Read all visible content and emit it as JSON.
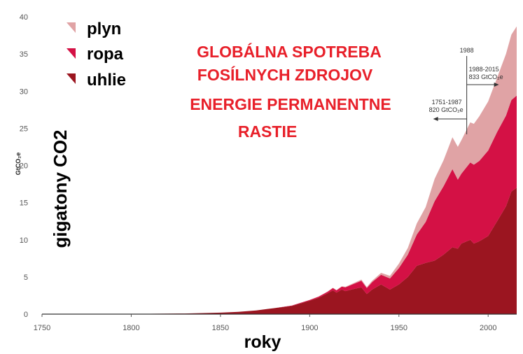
{
  "chart_data": {
    "type": "area",
    "stacked": true,
    "title_lines": [
      "GLOBÁLNA SPOTREBA",
      "FOSÍLNYCH ZDROJOV",
      "ENERGIE PERMANENTNE",
      "RASTIE"
    ],
    "xlabel": "roky",
    "ylabel": "gigatony CO2",
    "ylabel_unit": "GtCO₂e",
    "xlim": [
      1750,
      2016
    ],
    "ylim": [
      0,
      40
    ],
    "x_ticks": [
      1750,
      1800,
      1850,
      1900,
      1950,
      2000
    ],
    "y_ticks": [
      0,
      5,
      10,
      15,
      20,
      25,
      30,
      35,
      40
    ],
    "legend_position": "top-left",
    "legend": [
      {
        "name": "plyn",
        "color": "#e0a3a5"
      },
      {
        "name": "ropa",
        "color": "#d41145"
      },
      {
        "name": "uhlie",
        "color": "#9b1520"
      }
    ],
    "x": [
      1750,
      1800,
      1830,
      1850,
      1860,
      1870,
      1880,
      1890,
      1900,
      1905,
      1910,
      1913,
      1915,
      1918,
      1920,
      1925,
      1929,
      1932,
      1935,
      1940,
      1945,
      1950,
      1955,
      1960,
      1965,
      1970,
      1975,
      1980,
      1983,
      1985,
      1990,
      1992,
      1995,
      2000,
      2005,
      2010,
      2013,
      2016
    ],
    "series": [
      {
        "name": "uhlie",
        "color": "#9b1520",
        "values": [
          0.01,
          0.03,
          0.08,
          0.2,
          0.3,
          0.5,
          0.8,
          1.1,
          1.8,
          2.2,
          2.8,
          3.2,
          2.9,
          3.3,
          3.1,
          3.4,
          3.6,
          2.7,
          3.3,
          4.0,
          3.3,
          4.0,
          5.0,
          6.5,
          6.9,
          7.2,
          8.0,
          9.0,
          8.8,
          9.5,
          10.0,
          9.5,
          9.8,
          10.5,
          12.5,
          14.5,
          16.5,
          17.0
        ]
      },
      {
        "name": "ropa",
        "color": "#d41145",
        "values": [
          0,
          0,
          0,
          0,
          0,
          0,
          0,
          0.05,
          0.1,
          0.15,
          0.2,
          0.3,
          0.3,
          0.4,
          0.5,
          0.7,
          0.9,
          0.8,
          1.0,
          1.3,
          1.5,
          2.2,
          3.0,
          4.2,
          5.5,
          8.0,
          9.2,
          10.5,
          9.3,
          9.4,
          10.4,
          10.6,
          10.8,
          11.5,
          12.0,
          12.2,
          12.3,
          12.4
        ]
      },
      {
        "name": "plyn",
        "color": "#e0a3a5",
        "values": [
          0,
          0,
          0,
          0,
          0,
          0,
          0,
          0,
          0.02,
          0.03,
          0.05,
          0.05,
          0.05,
          0.06,
          0.08,
          0.12,
          0.15,
          0.15,
          0.18,
          0.25,
          0.35,
          0.6,
          0.9,
          1.5,
          2.0,
          3.0,
          3.5,
          4.3,
          4.4,
          4.5,
          5.4,
          5.5,
          6.0,
          6.6,
          7.3,
          8.3,
          8.8,
          9.3
        ]
      }
    ],
    "annotations": [
      {
        "x": 1988,
        "label": "1988"
      },
      {
        "direction": "right",
        "period": "1988-2015",
        "total": "833 GtCO₂e"
      },
      {
        "direction": "left",
        "period": "1751-1987",
        "total": "820 GtCO₂e"
      }
    ]
  }
}
